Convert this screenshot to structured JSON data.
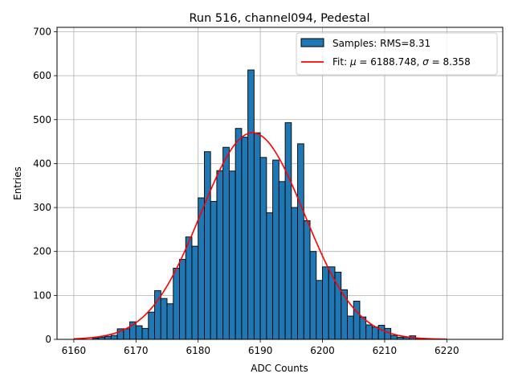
{
  "chart_data": {
    "type": "bar",
    "title": "Run 516, channel094, Pedestal",
    "xlabel": "ADC Counts",
    "ylabel": "Entries",
    "xlim": [
      6157.3,
      6229.0
    ],
    "ylim": [
      0,
      710
    ],
    "grid": true,
    "legend_position": "top-right",
    "x_ticks": [
      6160,
      6170,
      6180,
      6190,
      6200,
      6210,
      6220
    ],
    "y_ticks": [
      0,
      100,
      200,
      300,
      400,
      500,
      600,
      700
    ],
    "histogram": {
      "name": "Samples: RMS=8.31",
      "color": "#1f77b4",
      "edge_color": "#000000",
      "bins_start": 6160,
      "bin_width": 1,
      "values": [
        0,
        0,
        0,
        3,
        5,
        7,
        9,
        24,
        24,
        40,
        31,
        25,
        62,
        111,
        93,
        81,
        162,
        182,
        233,
        212,
        322,
        427,
        314,
        384,
        437,
        383,
        480,
        460,
        613,
        470,
        414,
        288,
        408,
        359,
        493,
        300,
        445,
        270,
        200,
        134,
        165,
        165,
        153,
        113,
        53,
        87,
        51,
        33,
        28,
        32,
        25,
        9,
        5,
        5,
        8,
        2,
        0,
        0,
        0,
        0
      ]
    },
    "fit": {
      "name": "Fit: μ = 6188.748, σ = 8.358",
      "color": "#ff0000",
      "type": "gaussian",
      "mu": 6188.748,
      "sigma": 8.358,
      "amplitude": 470,
      "x_range": [
        6160,
        6220
      ]
    }
  },
  "legend": {
    "samples_label": "Samples: RMS=8.31",
    "fit_prefix": "Fit: ",
    "fit_mu_symbol": "μ",
    "fit_mu_text": " = 6188.748, ",
    "fit_sigma_symbol": "σ",
    "fit_sigma_text": " = 8.358"
  }
}
